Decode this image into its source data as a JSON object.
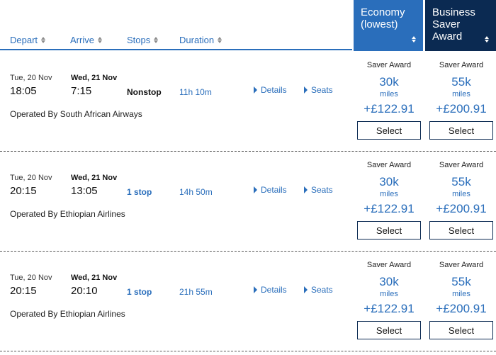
{
  "columns": {
    "depart": "Depart",
    "arrive": "Arrive",
    "stops": "Stops",
    "duration": "Duration"
  },
  "fare_columns": {
    "economy": [
      "Economy",
      "(lowest)"
    ],
    "business": [
      "Business",
      "Saver",
      "Award"
    ]
  },
  "links": {
    "details": "Details",
    "seats": "Seats"
  },
  "fare_labels": {
    "award": "Saver Award",
    "miles": "miles",
    "select": "Select"
  },
  "flights": [
    {
      "depart_date": "Tue, 20 Nov",
      "depart_time": "18:05",
      "arrive_date": "Wed, 21 Nov",
      "arrive_time": "7:15",
      "stops": "Nonstop",
      "duration": "11h 10m",
      "operated_by": "Operated By South African Airways",
      "economy": {
        "miles": "30k",
        "price": "+£122.91"
      },
      "business": {
        "miles": "55k",
        "price": "+£200.91"
      }
    },
    {
      "depart_date": "Tue, 20 Nov",
      "depart_time": "20:15",
      "arrive_date": "Wed, 21 Nov",
      "arrive_time": "13:05",
      "stops": "1 stop",
      "duration": "14h 50m",
      "operated_by": "Operated By Ethiopian Airlines",
      "economy": {
        "miles": "30k",
        "price": "+£122.91"
      },
      "business": {
        "miles": "55k",
        "price": "+£200.91"
      }
    },
    {
      "depart_date": "Tue, 20 Nov",
      "depart_time": "20:15",
      "arrive_date": "Wed, 21 Nov",
      "arrive_time": "20:10",
      "stops": "1 stop",
      "duration": "21h 55m",
      "operated_by": "Operated By Ethiopian Airlines",
      "economy": {
        "miles": "30k",
        "price": "+£122.91"
      },
      "business": {
        "miles": "55k",
        "price": "+£200.91"
      }
    }
  ],
  "colors": {
    "accent": "#2a6ebb",
    "navy": "#0b2a52"
  },
  "icons": {
    "sort": "sort-arrows-icon",
    "expand": "triangle-right-icon"
  }
}
